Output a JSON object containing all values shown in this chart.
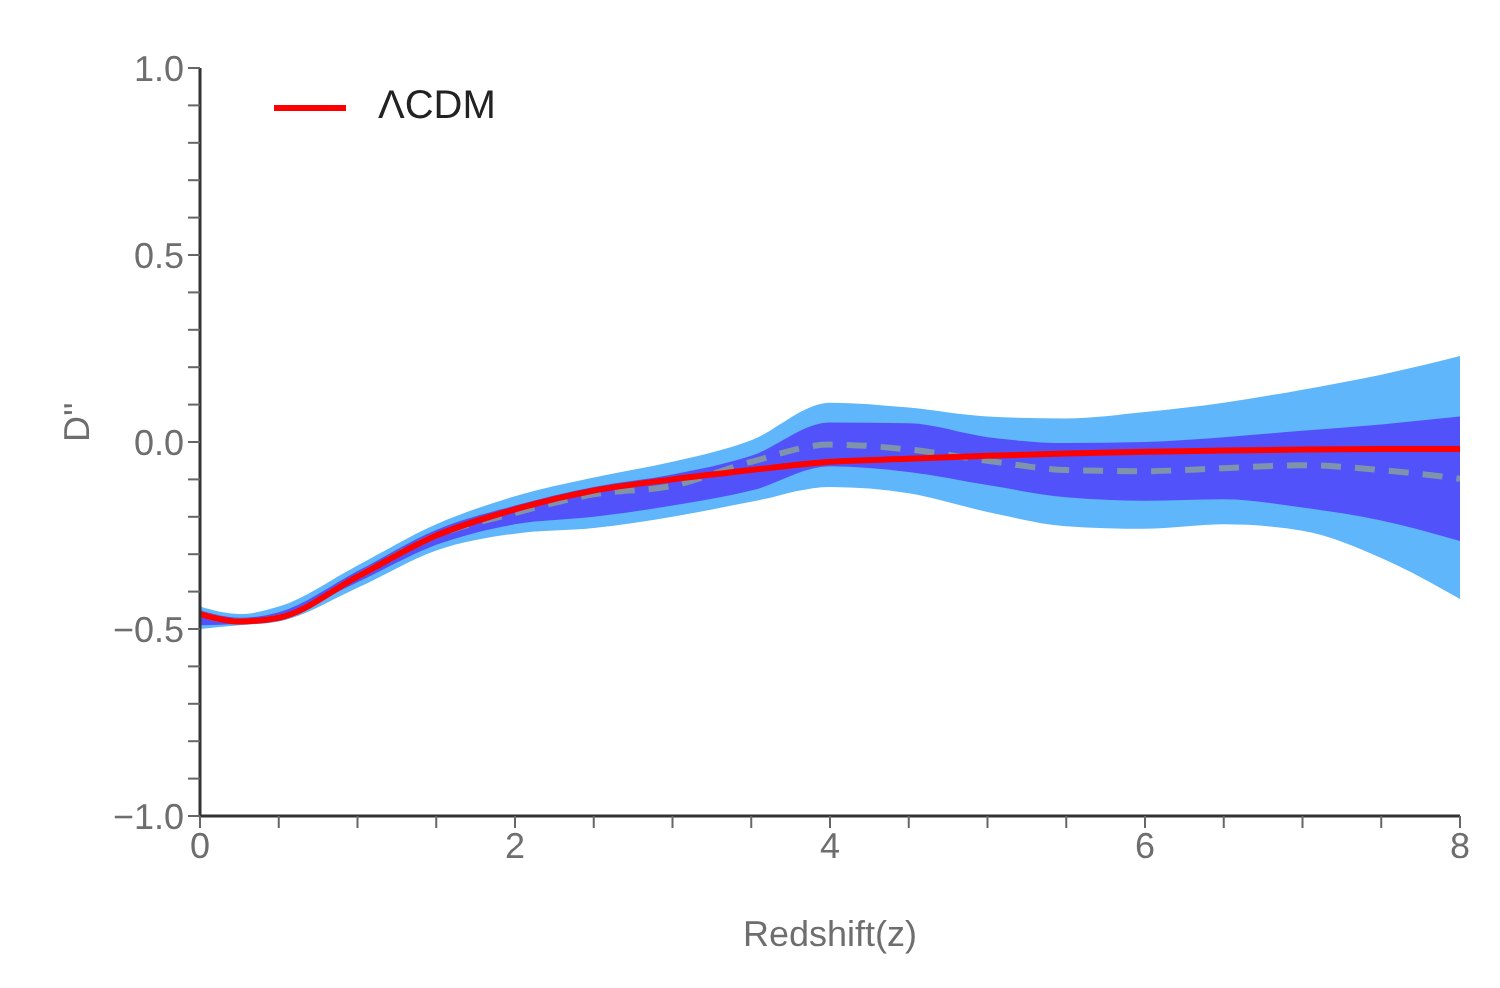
{
  "chart_data": {
    "type": "line",
    "xlabel": "Redshift(z)",
    "ylabel": "D''",
    "x": [
      0,
      0.25,
      0.5,
      1,
      1.5,
      2,
      2.5,
      3,
      3.5,
      4,
      4.5,
      5,
      5.5,
      6,
      6.5,
      7,
      7.5,
      8
    ],
    "series": [
      {
        "type": "area",
        "color": "#5fb6fb",
        "values": [
          null,
          null,
          null,
          null,
          null,
          null,
          null,
          null,
          null,
          null,
          null,
          null,
          null,
          null,
          null,
          null,
          null,
          null
        ],
        "lower": [
          -0.5,
          -0.49,
          -0.48,
          -0.39,
          -0.29,
          -0.245,
          -0.23,
          -0.2,
          -0.16,
          -0.12,
          -0.137,
          -0.187,
          -0.225,
          -0.232,
          -0.22,
          -0.237,
          -0.31,
          -0.42
        ],
        "upper": [
          -0.44,
          -0.46,
          -0.44,
          -0.33,
          -0.22,
          -0.145,
          -0.095,
          -0.053,
          0.005,
          0.105,
          0.092,
          0.068,
          0.063,
          0.08,
          0.105,
          0.14,
          0.18,
          0.23
        ]
      },
      {
        "type": "area",
        "color": "#5252fa",
        "values": [
          null,
          null,
          null,
          null,
          null,
          null,
          null,
          null,
          null,
          null,
          null,
          null,
          null,
          null,
          null,
          null,
          null,
          null
        ],
        "lower": [
          -0.49,
          -0.485,
          -0.47,
          -0.375,
          -0.275,
          -0.22,
          -0.2,
          -0.17,
          -0.13,
          -0.065,
          -0.08,
          -0.115,
          -0.148,
          -0.157,
          -0.153,
          -0.175,
          -0.21,
          -0.265
        ],
        "upper": [
          -0.45,
          -0.47,
          -0.455,
          -0.345,
          -0.235,
          -0.17,
          -0.12,
          -0.087,
          -0.037,
          0.052,
          0.05,
          0.013,
          -0.003,
          0,
          0.013,
          0.03,
          0.047,
          0.068
        ]
      },
      {
        "color": "#7f93ab",
        "line_style": "dashed",
        "values": [
          -0.46,
          -0.48,
          -0.47,
          -0.36,
          -0.25,
          -0.19,
          -0.14,
          -0.117,
          -0.053,
          -0.007,
          -0.02,
          -0.05,
          -0.075,
          -0.078,
          -0.07,
          -0.062,
          -0.075,
          -0.098
        ]
      },
      {
        "type": "line",
        "name": "ΛCDM",
        "color": "#ff0000",
        "line_style": "solid",
        "values": [
          -0.46,
          -0.48,
          -0.47,
          -0.36,
          -0.25,
          -0.18,
          -0.13,
          -0.1,
          -0.075,
          -0.053,
          -0.045,
          -0.037,
          -0.031,
          -0.026,
          -0.023,
          -0.02,
          -0.019,
          -0.019
        ]
      }
    ],
    "xlim": [
      0,
      8
    ],
    "xticks": [
      0,
      {
        "value": 0.5,
        "label": null
      },
      {
        "value": 1,
        "label": null
      },
      {
        "value": 1.5,
        "label": null
      },
      2,
      {
        "value": 2.5,
        "label": null
      },
      {
        "value": 3,
        "label": null
      },
      {
        "value": 3.5,
        "label": null
      },
      4,
      {
        "value": 4.5,
        "label": null
      },
      {
        "value": 5,
        "label": null
      },
      {
        "value": 5.5,
        "label": null
      },
      6,
      {
        "value": 6.5,
        "label": null
      },
      {
        "value": 7,
        "label": null
      },
      {
        "value": 7.5,
        "label": null
      },
      8
    ],
    "ylim": [
      -1,
      1
    ],
    "yticks": [
      {
        "value": -1,
        "label": "−1.0"
      },
      {
        "value": -0.9,
        "label": null
      },
      {
        "value": -0.8,
        "label": null
      },
      {
        "value": -0.7,
        "label": null
      },
      {
        "value": -0.6,
        "label": null
      },
      {
        "value": -0.5,
        "label": "−0.5"
      },
      {
        "value": -0.4,
        "label": null
      },
      {
        "value": -0.3,
        "label": null
      },
      {
        "value": -0.2,
        "label": null
      },
      {
        "value": -0.1,
        "label": null
      },
      {
        "value": 0,
        "label": "0.0"
      },
      {
        "value": 0.1,
        "label": null
      },
      {
        "value": 0.2,
        "label": null
      },
      {
        "value": 0.3,
        "label": null
      },
      {
        "value": 0.4,
        "label": null
      },
      {
        "value": 0.5,
        "label": "0.5"
      },
      {
        "value": 0.6,
        "label": null
      },
      {
        "value": 0.7,
        "label": null
      },
      {
        "value": 0.8,
        "label": null
      },
      {
        "value": 0.9,
        "label": null
      },
      {
        "value": 1,
        "label": "1.0"
      }
    ],
    "legend": "top left",
    "marker": "none"
  }
}
